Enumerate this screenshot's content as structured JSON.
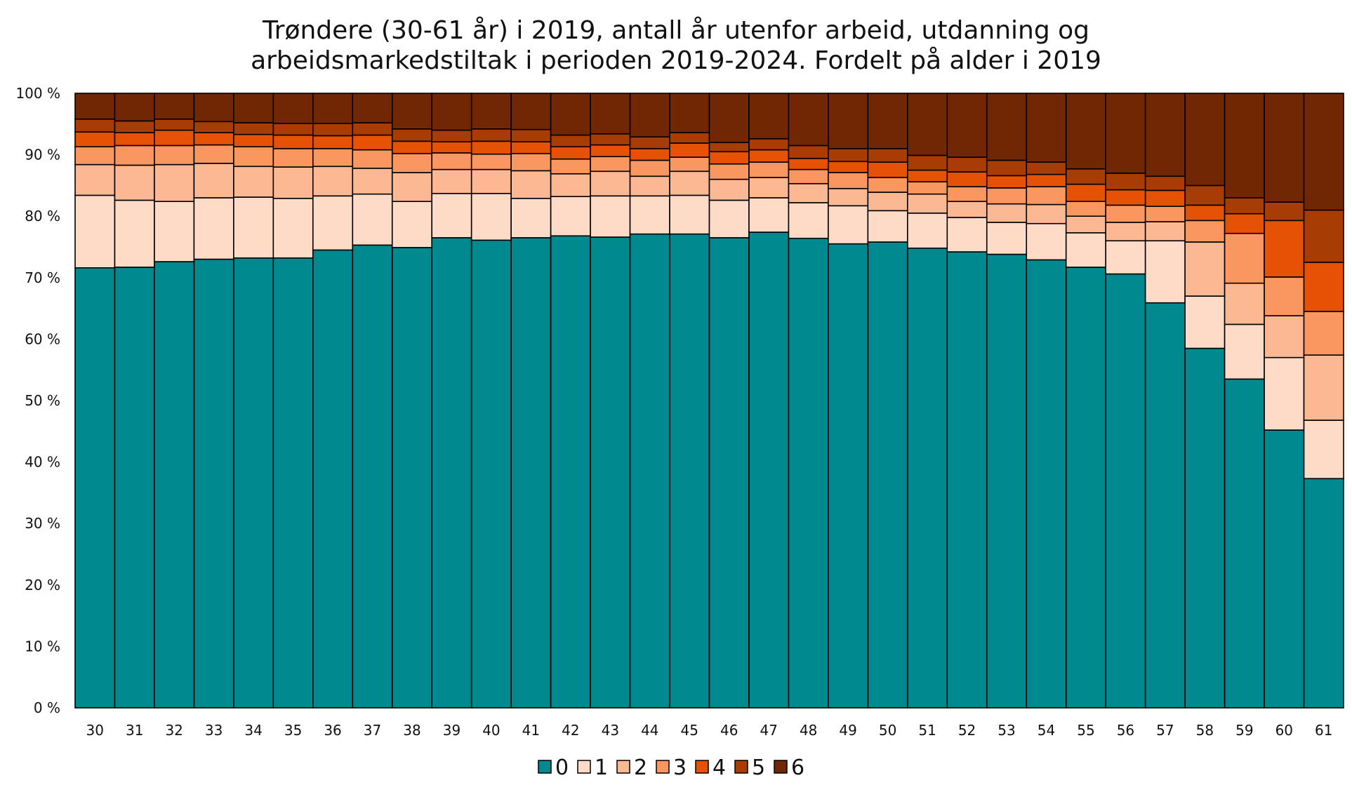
{
  "chart_data": {
    "type": "bar",
    "stacked": true,
    "title": [
      "Trøndere (30-61 år) i 2019, antall år utenfor arbeid, utdanning og",
      "arbeidsmarkedstiltak i perioden 2019-2024. Fordelt på alder i 2019"
    ],
    "xlabel": "",
    "ylabel": "",
    "ylim": [
      0,
      100
    ],
    "yticks": [
      "0 %",
      "10 %",
      "20 %",
      "30 %",
      "40 %",
      "50 %",
      "60 %",
      "70 %",
      "80 %",
      "90 %",
      "100 %"
    ],
    "grid": false,
    "legend_position": "bottom",
    "categories": [
      "30",
      "31",
      "32",
      "33",
      "34",
      "35",
      "36",
      "37",
      "38",
      "39",
      "40",
      "41",
      "42",
      "43",
      "44",
      "45",
      "46",
      "47",
      "48",
      "49",
      "50",
      "51",
      "52",
      "53",
      "54",
      "55",
      "56",
      "57",
      "58",
      "59",
      "60",
      "61"
    ],
    "series": [
      {
        "name": "0",
        "color": "#008A8F",
        "values": [
          71.6,
          71.7,
          72.6,
          73.0,
          73.2,
          73.2,
          74.5,
          75.3,
          74.9,
          76.5,
          76.1,
          76.5,
          76.8,
          76.6,
          77.1,
          77.1,
          76.5,
          77.4,
          76.4,
          75.5,
          75.8,
          74.8,
          74.2,
          73.8,
          72.9,
          71.7,
          70.6,
          65.9,
          58.5,
          53.5,
          45.2,
          37.3
        ]
      },
      {
        "name": "1",
        "color": "#FDDBC7",
        "values": [
          11.8,
          10.9,
          9.8,
          10.0,
          9.9,
          9.7,
          8.8,
          8.3,
          7.5,
          7.2,
          7.6,
          6.4,
          6.4,
          6.7,
          6.2,
          6.3,
          6.1,
          5.6,
          5.8,
          6.2,
          5.1,
          5.7,
          5.6,
          5.2,
          5.9,
          5.6,
          5.4,
          10.1,
          8.5,
          8.9,
          11.8,
          9.5
        ]
      },
      {
        "name": "2",
        "color": "#FCB893",
        "values": [
          5.0,
          5.7,
          6.0,
          5.6,
          5.0,
          5.1,
          4.8,
          4.2,
          4.7,
          3.9,
          3.9,
          4.5,
          3.7,
          4.0,
          3.2,
          3.9,
          3.4,
          3.3,
          3.1,
          2.8,
          3.0,
          3.1,
          2.6,
          3.0,
          3.1,
          2.7,
          3.0,
          3.1,
          8.8,
          6.7,
          6.8,
          10.6
        ]
      },
      {
        "name": "3",
        "color": "#FA9660",
        "values": [
          2.9,
          3.2,
          3.1,
          3.0,
          3.2,
          3.0,
          2.9,
          3.0,
          3.1,
          2.7,
          2.5,
          2.8,
          2.4,
          2.4,
          2.6,
          2.3,
          2.5,
          2.5,
          2.3,
          2.6,
          2.4,
          2.0,
          2.4,
          2.6,
          2.9,
          2.4,
          2.8,
          2.5,
          3.5,
          8.1,
          6.3,
          7.1
        ]
      },
      {
        "name": "4",
        "color": "#E65205",
        "values": [
          2.4,
          2.1,
          2.5,
          2.0,
          2.0,
          2.2,
          2.1,
          2.4,
          2.0,
          1.8,
          2.1,
          1.9,
          2.0,
          1.9,
          1.9,
          2.3,
          2.0,
          2.0,
          1.8,
          1.8,
          2.5,
          1.9,
          2.4,
          2.0,
          2.0,
          2.8,
          2.5,
          2.6,
          2.5,
          3.2,
          9.2,
          8.0
        ]
      },
      {
        "name": "5",
        "color": "#A83C05",
        "values": [
          2.1,
          1.9,
          1.8,
          1.8,
          1.9,
          1.9,
          2.0,
          2.0,
          2.0,
          1.9,
          2.0,
          2.0,
          1.9,
          1.8,
          1.9,
          1.7,
          1.5,
          1.8,
          2.1,
          2.1,
          2.2,
          2.4,
          2.4,
          2.5,
          2.0,
          2.5,
          2.7,
          2.3,
          3.2,
          2.6,
          3.0,
          8.5
        ]
      },
      {
        "name": "6",
        "color": "#722704",
        "values": [
          4.2,
          4.5,
          4.2,
          4.6,
          4.8,
          4.9,
          4.9,
          4.8,
          5.8,
          6.0,
          5.8,
          5.9,
          6.8,
          6.6,
          7.1,
          6.4,
          8.0,
          7.4,
          8.5,
          9.0,
          9.0,
          10.1,
          10.4,
          10.9,
          11.2,
          12.3,
          13.0,
          13.5,
          15.0,
          17.0,
          17.7,
          19.0
        ]
      }
    ]
  }
}
